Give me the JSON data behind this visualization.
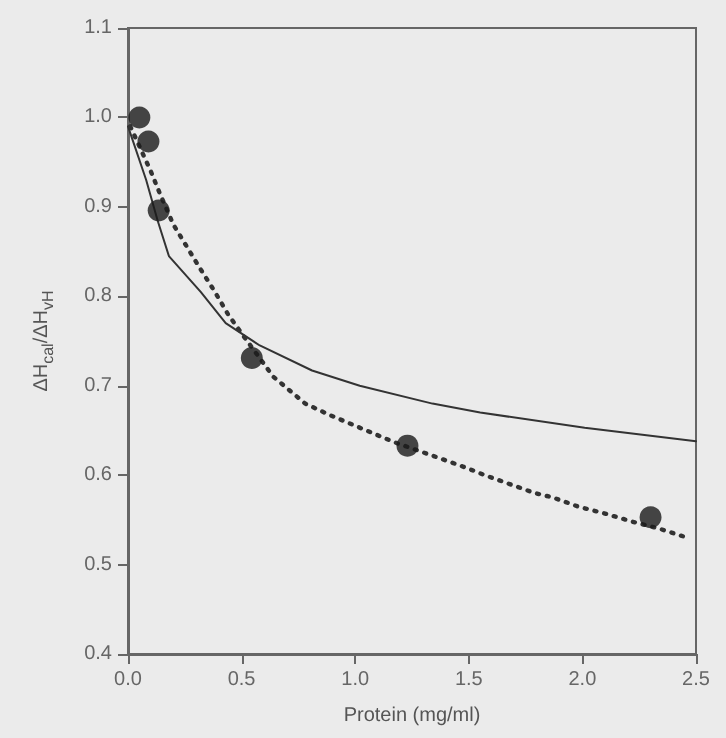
{
  "chart_data": {
    "type": "scatter",
    "xlabel": "Protein (mg/ml)",
    "ylabel": "ΔH$_{cal}$/ΔH$_{vH}$",
    "xlim": [
      0,
      2.5
    ],
    "xticks": [
      {
        "value": 0,
        "label": "0.0"
      },
      0.5,
      {
        "value": 1,
        "label": "1.0"
      },
      1.5,
      {
        "value": 2,
        "label": "2.0"
      },
      2.5
    ],
    "ylim": [
      0.4,
      1.1
    ],
    "yticks": [
      0.4,
      0.5,
      0.6,
      0.7,
      0.8,
      0.9,
      {
        "value": 1,
        "label": "1.0"
      },
      1.1
    ],
    "grid": false,
    "series": [
      {
        "type": "line",
        "line_style": "solid",
        "marker": "none",
        "color": "#333333",
        "x": [
          0,
          0.08,
          0.13,
          0.18,
          0.32,
          0.43,
          0.58,
          0.81,
          1.02,
          1.34,
          1.55,
          2.01,
          2.5
        ],
        "values": [
          0.99,
          0.93,
          0.885,
          0.845,
          0.805,
          0.77,
          0.745,
          0.717,
          0.7,
          0.68,
          0.67,
          0.653,
          0.638
        ]
      },
      {
        "type": "line",
        "line_style": "dotted",
        "marker": "none",
        "color": "#333333",
        "x": [
          0.01,
          0.1,
          0.14,
          0.2,
          0.26,
          0.32,
          0.38,
          0.44,
          0.51,
          0.64,
          0.78,
          0.89,
          1.03,
          1.17,
          1.36,
          1.47,
          1.57,
          1.68,
          1.79,
          1.87,
          1.98,
          2.1,
          2.22,
          2.34,
          2.45
        ],
        "values": [
          0.99,
          0.94,
          0.915,
          0.88,
          0.855,
          0.83,
          0.806,
          0.78,
          0.755,
          0.71,
          0.68,
          0.667,
          0.652,
          0.637,
          0.62,
          0.61,
          0.6,
          0.59,
          0.58,
          0.575,
          0.565,
          0.557,
          0.548,
          0.54,
          0.531
        ]
      },
      {
        "marker": "circle",
        "color": "#1a1a1a",
        "x": [
          0.05,
          0.09,
          0.135,
          0.545,
          1.23,
          2.3
        ],
        "values": [
          1.0,
          0.973,
          0.896,
          0.731,
          0.633,
          0.553
        ]
      }
    ]
  }
}
